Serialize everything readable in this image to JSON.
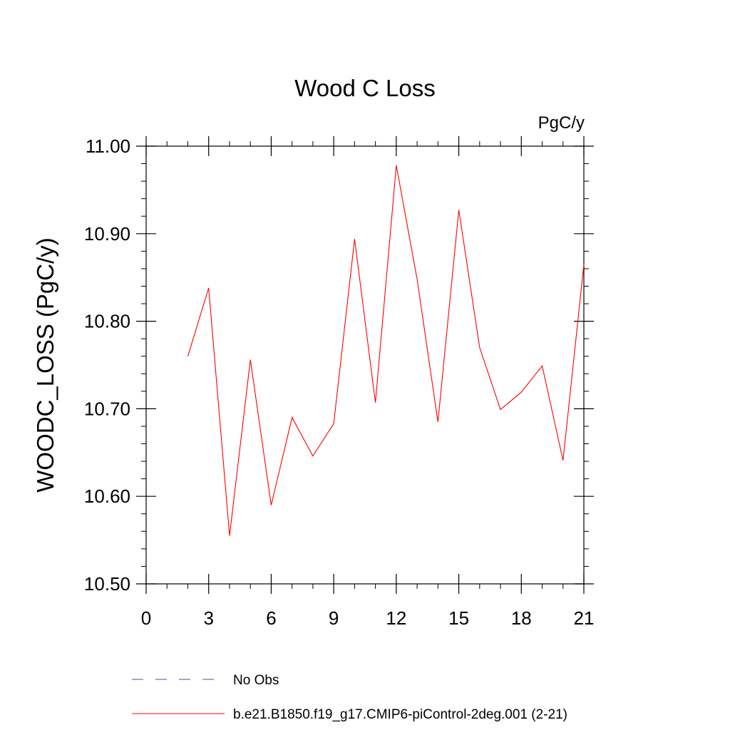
{
  "chart_data": {
    "type": "line",
    "title": "Wood C Loss",
    "units_label": "PgC/y",
    "ylabel": "WOODC_LOSS  (PgC/y)",
    "xlabel": "",
    "xlim": [
      0,
      21
    ],
    "ylim": [
      10.5,
      11.0
    ],
    "x_ticks": [
      0,
      3,
      6,
      9,
      12,
      15,
      18,
      21
    ],
    "y_ticks": [
      10.5,
      10.6,
      10.7,
      10.8,
      10.9,
      11.0
    ],
    "y_tick_labels": [
      "10.50",
      "10.60",
      "10.70",
      "10.80",
      "10.90",
      "11.00"
    ],
    "series": [
      {
        "name": "b.e21.B1850.f19_g17.CMIP6-piControl-2deg.001 (2-21)",
        "color": "#ff0000",
        "x": [
          2,
          3,
          4,
          5,
          6,
          7,
          8,
          9,
          10,
          11,
          12,
          13,
          14,
          15,
          16,
          17,
          18,
          19,
          20,
          21
        ],
        "y": [
          10.76,
          10.838,
          10.555,
          10.756,
          10.59,
          10.69,
          10.646,
          10.683,
          10.894,
          10.707,
          10.978,
          10.848,
          10.685,
          10.927,
          10.77,
          10.699,
          10.719,
          10.749,
          10.641,
          10.865
        ]
      }
    ],
    "legend": [
      {
        "label": "No Obs",
        "color": "#7070b8",
        "style": "dashed"
      },
      {
        "label": "b.e21.B1850.f19_g17.CMIP6-piControl-2deg.001 (2-21)",
        "color": "#ff0000",
        "style": "solid"
      }
    ]
  }
}
